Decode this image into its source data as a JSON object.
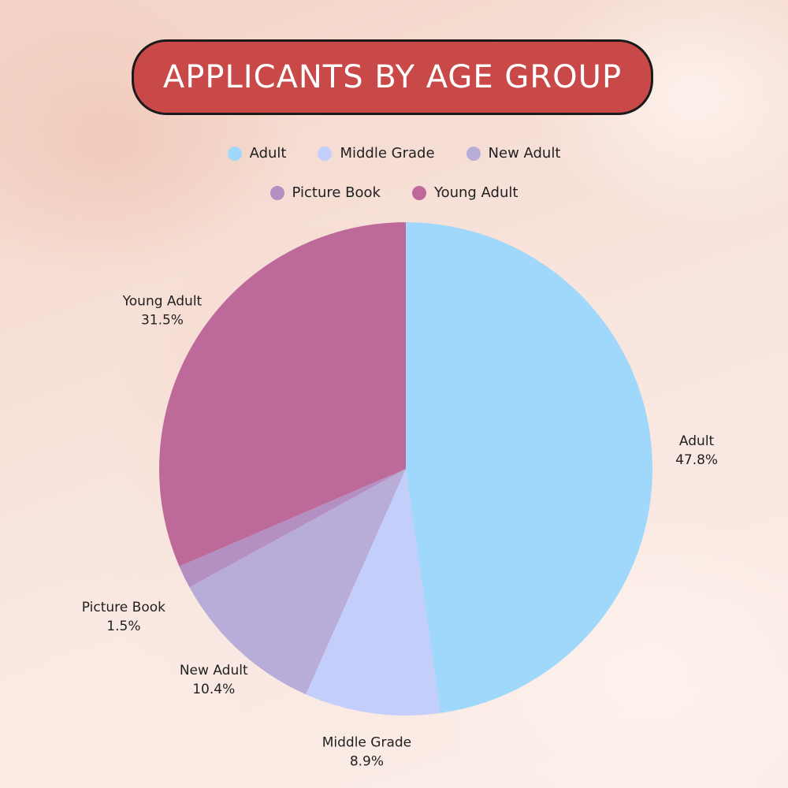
{
  "chart_data": {
    "type": "pie",
    "title": "APPLICANTS BY AGE GROUP",
    "legend_position": "top",
    "slices": [
      {
        "label": "Adult",
        "value": 47.8,
        "display": "47.8%",
        "color": "#a0d8fb"
      },
      {
        "label": "Middle Grade",
        "value": 8.9,
        "display": "8.9%",
        "color": "#c3cefb"
      },
      {
        "label": "New Adult",
        "value": 10.4,
        "display": "10.4%",
        "color": "#b8acd8"
      },
      {
        "label": "Picture Book",
        "value": 1.5,
        "display": "1.5%",
        "color": "#b48fc2"
      },
      {
        "label": "Young Adult",
        "value": 31.5,
        "display": "31.5%",
        "color": "#bd6a9a"
      }
    ]
  },
  "colors": {
    "title_background": "#c94848",
    "title_text": "#ffffff"
  }
}
